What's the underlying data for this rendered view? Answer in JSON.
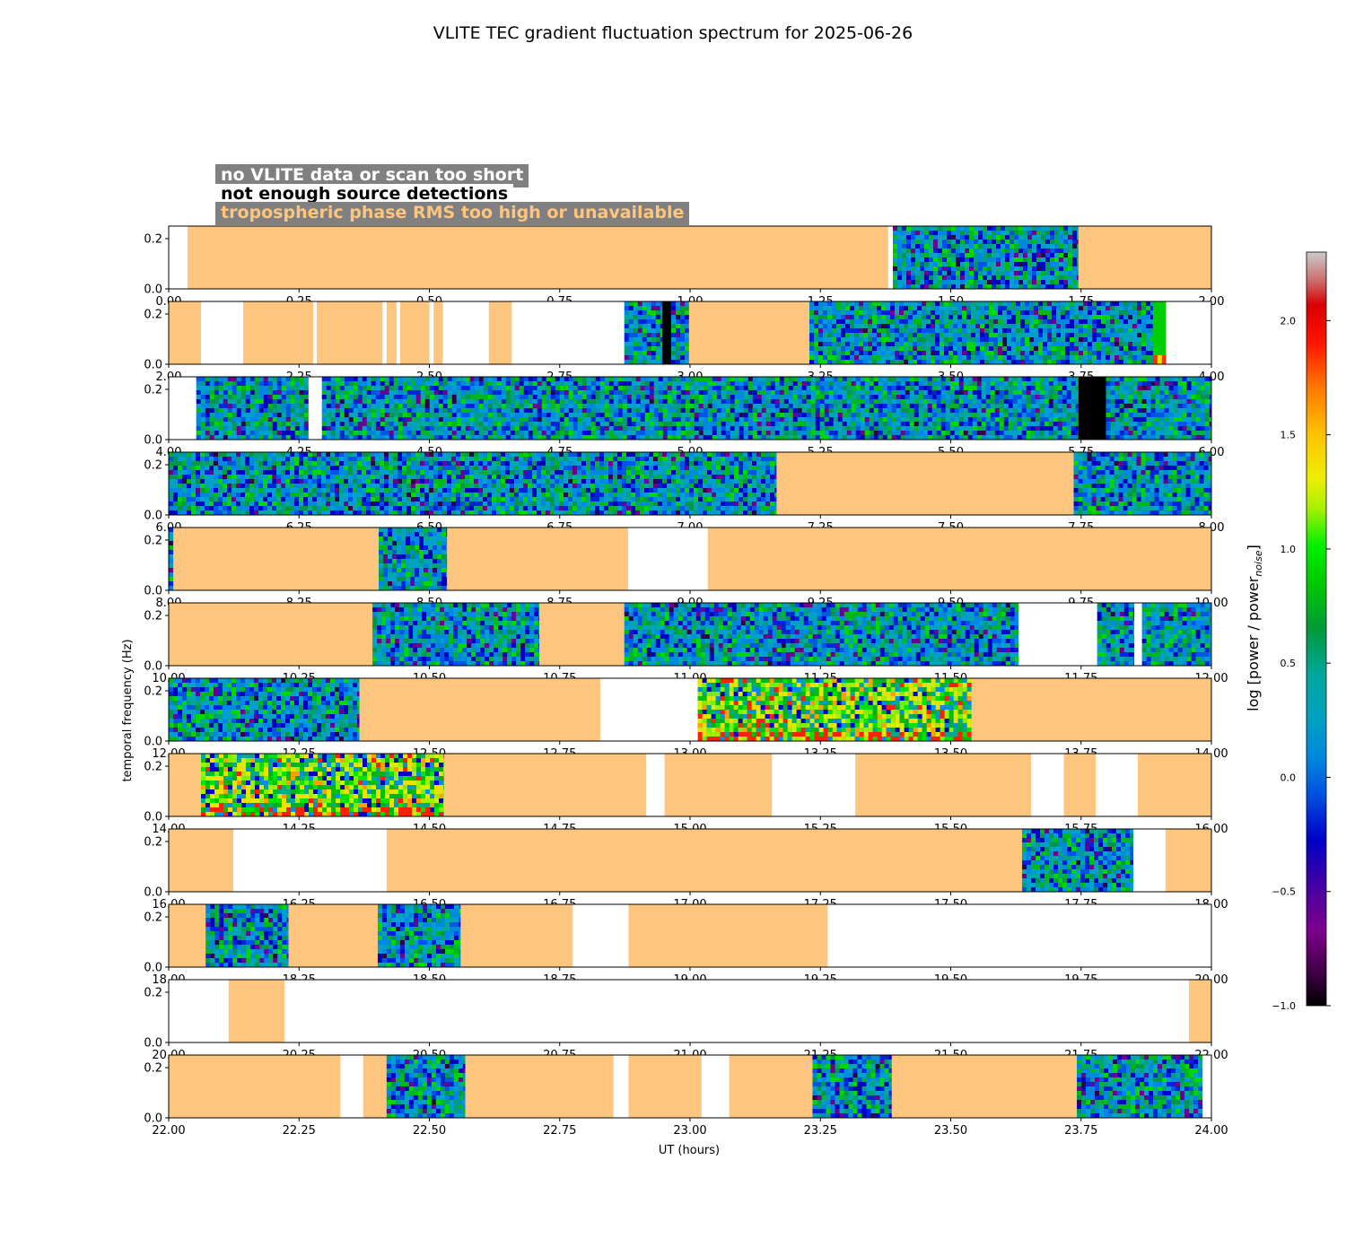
{
  "chart_data": {
    "type": "heatmap",
    "title": "VLITE TEC gradient fluctuation spectrum for 2025-06-26",
    "xlabel": "UT (hours)",
    "ylabel": "temporal frequency (Hz)",
    "colorbar": {
      "label": "log [power / power",
      "label_sub": "noise",
      "label_end": "]",
      "range": [
        -1.0,
        2.3
      ],
      "ticks": [
        "−1.0",
        "−0.5",
        "0.0",
        "0.5",
        "1.0",
        "1.5",
        "2.0"
      ],
      "tick_values": [
        -1.0,
        -0.5,
        0.0,
        0.5,
        1.0,
        1.5,
        2.0
      ]
    },
    "legend": [
      {
        "text": "no VLITE data or scan too short",
        "color": "#ffffff",
        "category": "nodata"
      },
      {
        "text": "not enough source detections",
        "color": "#000000",
        "category": "fewdet"
      },
      {
        "text": "tropospheric phase RMS too high or unavailable",
        "color": "#fdc57d",
        "category": "trop"
      }
    ],
    "y_ticks": [
      "0.0",
      "0.2"
    ],
    "y_tick_values": [
      0.0,
      0.2
    ],
    "ylim": [
      0,
      0.25
    ],
    "colors": {
      "trop": "#fdc57d",
      "nodata": "#ffffff",
      "fewdet": "#000000",
      "legend_box": "#808080"
    },
    "panels": [
      {
        "xlim": [
          0,
          2
        ],
        "x_ticks": [
          "0.00",
          "0.25",
          "0.50",
          "0.75",
          "1.00",
          "1.25",
          "1.50",
          "1.75",
          "2.00"
        ],
        "segments": [
          [
            "none",
            0,
            0.036
          ],
          [
            "trop",
            0.036,
            1.38
          ],
          [
            "none",
            1.38,
            1.389
          ],
          [
            "data",
            1.389,
            1.745
          ],
          [
            "trop",
            1.745,
            2.0
          ]
        ]
      },
      {
        "xlim": [
          2,
          4
        ],
        "x_ticks": [
          "2.00",
          "2.25",
          "2.50",
          "2.75",
          "3.00",
          "3.25",
          "3.50",
          "3.75",
          "4.00"
        ],
        "segments": [
          [
            "trop",
            2.0,
            2.062
          ],
          [
            "none",
            2.062,
            2.143
          ],
          [
            "trop",
            2.143,
            2.277
          ],
          [
            "none",
            2.277,
            2.284
          ],
          [
            "trop",
            2.284,
            2.41
          ],
          [
            "none",
            2.41,
            2.418
          ],
          [
            "trop",
            2.418,
            2.437
          ],
          [
            "none",
            2.437,
            2.444
          ],
          [
            "trop",
            2.444,
            2.5
          ],
          [
            "none",
            2.5,
            2.508
          ],
          [
            "trop",
            2.508,
            2.526
          ],
          [
            "none",
            2.526,
            2.614
          ],
          [
            "trop",
            2.614,
            2.658
          ],
          [
            "none",
            2.658,
            2.874
          ],
          [
            "data",
            2.874,
            2.947
          ],
          [
            "few",
            2.947,
            2.964
          ],
          [
            "data",
            2.964,
            2.998
          ],
          [
            "trop",
            2.998,
            3.229
          ],
          [
            "data",
            3.229,
            3.888
          ],
          [
            "lowred",
            3.888,
            3.913
          ],
          [
            "none",
            3.913,
            4.0
          ]
        ]
      },
      {
        "xlim": [
          4,
          6
        ],
        "x_ticks": [
          "4.00",
          "4.25",
          "4.50",
          "4.75",
          "5.00",
          "5.25",
          "5.50",
          "5.75",
          "6.00"
        ],
        "segments": [
          [
            "none",
            4.0,
            4.053
          ],
          [
            "data",
            4.053,
            4.268
          ],
          [
            "none",
            4.268,
            4.294
          ],
          [
            "data",
            4.294,
            5.745
          ],
          [
            "few",
            5.745,
            5.798
          ],
          [
            "data",
            5.798,
            6.0
          ]
        ]
      },
      {
        "xlim": [
          6,
          8
        ],
        "x_ticks": [
          "6.00",
          "6.25",
          "6.50",
          "6.75",
          "7.00",
          "7.25",
          "7.50",
          "7.75",
          "8.00"
        ],
        "segments": [
          [
            "data",
            6.0,
            7.166
          ],
          [
            "trop",
            7.166,
            7.736
          ],
          [
            "data",
            7.736,
            8.0
          ]
        ]
      },
      {
        "xlim": [
          8,
          10
        ],
        "x_ticks": [
          "8.00",
          "8.25",
          "8.50",
          "8.75",
          "9.00",
          "9.25",
          "9.50",
          "9.75",
          "10.00"
        ],
        "segments": [
          [
            "data",
            8.0,
            8.009
          ],
          [
            "trop",
            8.009,
            8.403
          ],
          [
            "data",
            8.403,
            8.534
          ],
          [
            "trop",
            8.534,
            8.881
          ],
          [
            "none",
            8.881,
            9.034
          ],
          [
            "trop",
            9.034,
            10.0
          ]
        ]
      },
      {
        "xlim": [
          10,
          12
        ],
        "x_ticks": [
          "10.00",
          "10.25",
          "10.50",
          "10.75",
          "11.00",
          "11.25",
          "11.50",
          "11.75",
          "12.00"
        ],
        "segments": [
          [
            "trop",
            10.0,
            10.391
          ],
          [
            "data",
            10.391,
            10.711
          ],
          [
            "trop",
            10.711,
            10.874
          ],
          [
            "data",
            10.874,
            11.63
          ],
          [
            "none",
            11.63,
            11.781
          ],
          [
            "data",
            11.781,
            11.852
          ],
          [
            "none",
            11.852,
            11.867
          ],
          [
            "data",
            11.867,
            12.0
          ]
        ]
      },
      {
        "xlim": [
          12,
          14
        ],
        "x_ticks": [
          "12.00",
          "12.25",
          "12.50",
          "12.75",
          "13.00",
          "13.25",
          "13.50",
          "13.75",
          "14.00"
        ],
        "segments": [
          [
            "data",
            12.0,
            12.366
          ],
          [
            "trop",
            12.366,
            12.828
          ],
          [
            "none",
            12.828,
            13.015
          ],
          [
            "warm",
            13.015,
            13.54
          ],
          [
            "trop",
            13.54,
            14.0
          ]
        ]
      },
      {
        "xlim": [
          14,
          16
        ],
        "x_ticks": [
          "14.00",
          "14.25",
          "14.50",
          "14.75",
          "15.00",
          "15.25",
          "15.50",
          "15.75",
          "16.00"
        ],
        "segments": [
          [
            "trop",
            14.0,
            14.062
          ],
          [
            "warm",
            14.062,
            14.528
          ],
          [
            "trop",
            14.528,
            14.916
          ],
          [
            "none",
            14.916,
            14.951
          ],
          [
            "trop",
            14.951,
            15.157
          ],
          [
            "none",
            15.157,
            15.317
          ],
          [
            "trop",
            15.317,
            15.654
          ],
          [
            "none",
            15.654,
            15.717
          ],
          [
            "trop",
            15.717,
            15.778
          ],
          [
            "none",
            15.778,
            15.859
          ],
          [
            "trop",
            15.859,
            16.0
          ]
        ]
      },
      {
        "xlim": [
          16,
          18
        ],
        "x_ticks": [
          "16.00",
          "16.25",
          "16.50",
          "16.75",
          "17.00",
          "17.25",
          "17.50",
          "17.75",
          "18.00"
        ],
        "segments": [
          [
            "trop",
            16.0,
            16.124
          ],
          [
            "none",
            16.124,
            16.418
          ],
          [
            "trop",
            16.418,
            17.637
          ],
          [
            "data",
            17.637,
            17.85
          ],
          [
            "none",
            17.85,
            17.912
          ],
          [
            "trop",
            17.912,
            18.0
          ]
        ]
      },
      {
        "xlim": [
          18,
          20
        ],
        "x_ticks": [
          "18.00",
          "18.25",
          "18.50",
          "18.75",
          "19.00",
          "19.25",
          "19.50",
          "19.75",
          "20.00"
        ],
        "segments": [
          [
            "trop",
            18.0,
            18.071
          ],
          [
            "data",
            18.071,
            18.23
          ],
          [
            "trop",
            18.23,
            18.401
          ],
          [
            "data",
            18.401,
            18.56
          ],
          [
            "trop",
            18.56,
            18.775
          ],
          [
            "none",
            18.775,
            18.882
          ],
          [
            "trop",
            18.882,
            19.264
          ],
          [
            "none",
            19.264,
            20.0
          ]
        ]
      },
      {
        "xlim": [
          20,
          22
        ],
        "x_ticks": [
          "20.00",
          "20.25",
          "20.50",
          "20.75",
          "21.00",
          "21.25",
          "21.50",
          "21.75",
          "22.00"
        ],
        "segments": [
          [
            "none",
            20.0,
            20.115
          ],
          [
            "trop",
            20.115,
            20.222
          ],
          [
            "none",
            20.222,
            21.957
          ],
          [
            "trop",
            21.957,
            22.0
          ]
        ]
      },
      {
        "xlim": [
          22,
          24
        ],
        "x_ticks": [
          "22.00",
          "22.25",
          "22.50",
          "22.75",
          "23.00",
          "23.25",
          "23.50",
          "23.75",
          "24.00"
        ],
        "segments": [
          [
            "trop",
            22.0,
            22.329
          ],
          [
            "none",
            22.329,
            22.373
          ],
          [
            "trop",
            22.373,
            22.418
          ],
          [
            "data",
            22.418,
            22.569
          ],
          [
            "trop",
            22.569,
            22.853
          ],
          [
            "none",
            22.853,
            22.882
          ],
          [
            "trop",
            22.882,
            23.022
          ],
          [
            "none",
            23.022,
            23.075
          ],
          [
            "trop",
            23.075,
            23.235
          ],
          [
            "data",
            23.235,
            23.387
          ],
          [
            "trop",
            23.387,
            23.742
          ],
          [
            "data",
            23.742,
            23.983
          ],
          [
            "none",
            23.983,
            24.0
          ]
        ]
      }
    ]
  }
}
